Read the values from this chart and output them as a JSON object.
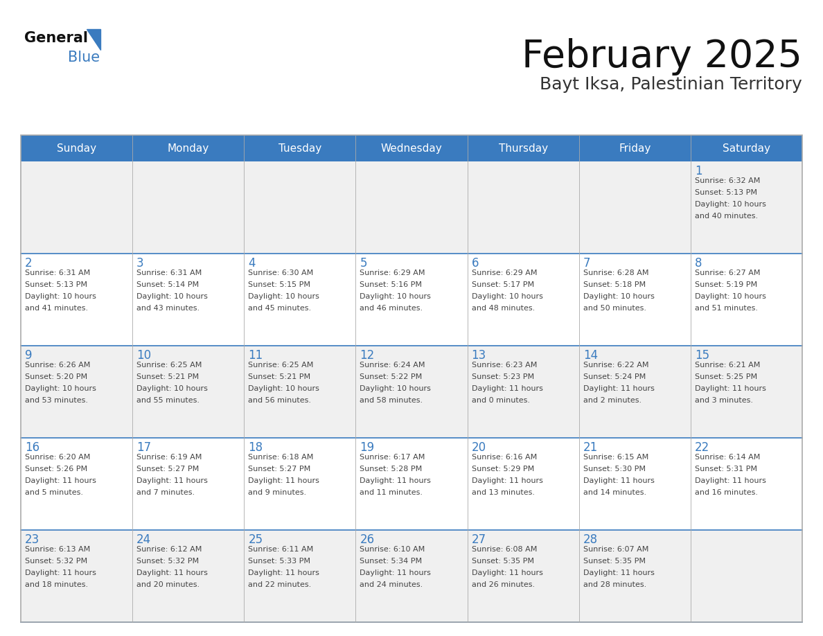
{
  "title": "February 2025",
  "subtitle": "Bayt Iksa, Palestinian Territory",
  "header_bg_color": "#3a7bbf",
  "header_text_color": "#ffffff",
  "cell_bg_gray": "#f0f0f0",
  "cell_bg_white": "#ffffff",
  "day_headers": [
    "Sunday",
    "Monday",
    "Tuesday",
    "Wednesday",
    "Thursday",
    "Friday",
    "Saturday"
  ],
  "title_color": "#111111",
  "subtitle_color": "#333333",
  "day_num_color": "#3a7bbf",
  "info_color": "#444444",
  "logo_general_color": "#111111",
  "logo_blue_color": "#3a7bbf",
  "separator_color": "#3a7bbf",
  "border_color": "#aaaaaa",
  "days": [
    {
      "day": 1,
      "col": 6,
      "row": 0,
      "sunrise": "6:32 AM",
      "sunset": "5:13 PM",
      "daylight_line1": "Daylight: 10 hours",
      "daylight_line2": "and 40 minutes."
    },
    {
      "day": 2,
      "col": 0,
      "row": 1,
      "sunrise": "6:31 AM",
      "sunset": "5:13 PM",
      "daylight_line1": "Daylight: 10 hours",
      "daylight_line2": "and 41 minutes."
    },
    {
      "day": 3,
      "col": 1,
      "row": 1,
      "sunrise": "6:31 AM",
      "sunset": "5:14 PM",
      "daylight_line1": "Daylight: 10 hours",
      "daylight_line2": "and 43 minutes."
    },
    {
      "day": 4,
      "col": 2,
      "row": 1,
      "sunrise": "6:30 AM",
      "sunset": "5:15 PM",
      "daylight_line1": "Daylight: 10 hours",
      "daylight_line2": "and 45 minutes."
    },
    {
      "day": 5,
      "col": 3,
      "row": 1,
      "sunrise": "6:29 AM",
      "sunset": "5:16 PM",
      "daylight_line1": "Daylight: 10 hours",
      "daylight_line2": "and 46 minutes."
    },
    {
      "day": 6,
      "col": 4,
      "row": 1,
      "sunrise": "6:29 AM",
      "sunset": "5:17 PM",
      "daylight_line1": "Daylight: 10 hours",
      "daylight_line2": "and 48 minutes."
    },
    {
      "day": 7,
      "col": 5,
      "row": 1,
      "sunrise": "6:28 AM",
      "sunset": "5:18 PM",
      "daylight_line1": "Daylight: 10 hours",
      "daylight_line2": "and 50 minutes."
    },
    {
      "day": 8,
      "col": 6,
      "row": 1,
      "sunrise": "6:27 AM",
      "sunset": "5:19 PM",
      "daylight_line1": "Daylight: 10 hours",
      "daylight_line2": "and 51 minutes."
    },
    {
      "day": 9,
      "col": 0,
      "row": 2,
      "sunrise": "6:26 AM",
      "sunset": "5:20 PM",
      "daylight_line1": "Daylight: 10 hours",
      "daylight_line2": "and 53 minutes."
    },
    {
      "day": 10,
      "col": 1,
      "row": 2,
      "sunrise": "6:25 AM",
      "sunset": "5:21 PM",
      "daylight_line1": "Daylight: 10 hours",
      "daylight_line2": "and 55 minutes."
    },
    {
      "day": 11,
      "col": 2,
      "row": 2,
      "sunrise": "6:25 AM",
      "sunset": "5:21 PM",
      "daylight_line1": "Daylight: 10 hours",
      "daylight_line2": "and 56 minutes."
    },
    {
      "day": 12,
      "col": 3,
      "row": 2,
      "sunrise": "6:24 AM",
      "sunset": "5:22 PM",
      "daylight_line1": "Daylight: 10 hours",
      "daylight_line2": "and 58 minutes."
    },
    {
      "day": 13,
      "col": 4,
      "row": 2,
      "sunrise": "6:23 AM",
      "sunset": "5:23 PM",
      "daylight_line1": "Daylight: 11 hours",
      "daylight_line2": "and 0 minutes."
    },
    {
      "day": 14,
      "col": 5,
      "row": 2,
      "sunrise": "6:22 AM",
      "sunset": "5:24 PM",
      "daylight_line1": "Daylight: 11 hours",
      "daylight_line2": "and 2 minutes."
    },
    {
      "day": 15,
      "col": 6,
      "row": 2,
      "sunrise": "6:21 AM",
      "sunset": "5:25 PM",
      "daylight_line1": "Daylight: 11 hours",
      "daylight_line2": "and 3 minutes."
    },
    {
      "day": 16,
      "col": 0,
      "row": 3,
      "sunrise": "6:20 AM",
      "sunset": "5:26 PM",
      "daylight_line1": "Daylight: 11 hours",
      "daylight_line2": "and 5 minutes."
    },
    {
      "day": 17,
      "col": 1,
      "row": 3,
      "sunrise": "6:19 AM",
      "sunset": "5:27 PM",
      "daylight_line1": "Daylight: 11 hours",
      "daylight_line2": "and 7 minutes."
    },
    {
      "day": 18,
      "col": 2,
      "row": 3,
      "sunrise": "6:18 AM",
      "sunset": "5:27 PM",
      "daylight_line1": "Daylight: 11 hours",
      "daylight_line2": "and 9 minutes."
    },
    {
      "day": 19,
      "col": 3,
      "row": 3,
      "sunrise": "6:17 AM",
      "sunset": "5:28 PM",
      "daylight_line1": "Daylight: 11 hours",
      "daylight_line2": "and 11 minutes."
    },
    {
      "day": 20,
      "col": 4,
      "row": 3,
      "sunrise": "6:16 AM",
      "sunset": "5:29 PM",
      "daylight_line1": "Daylight: 11 hours",
      "daylight_line2": "and 13 minutes."
    },
    {
      "day": 21,
      "col": 5,
      "row": 3,
      "sunrise": "6:15 AM",
      "sunset": "5:30 PM",
      "daylight_line1": "Daylight: 11 hours",
      "daylight_line2": "and 14 minutes."
    },
    {
      "day": 22,
      "col": 6,
      "row": 3,
      "sunrise": "6:14 AM",
      "sunset": "5:31 PM",
      "daylight_line1": "Daylight: 11 hours",
      "daylight_line2": "and 16 minutes."
    },
    {
      "day": 23,
      "col": 0,
      "row": 4,
      "sunrise": "6:13 AM",
      "sunset": "5:32 PM",
      "daylight_line1": "Daylight: 11 hours",
      "daylight_line2": "and 18 minutes."
    },
    {
      "day": 24,
      "col": 1,
      "row": 4,
      "sunrise": "6:12 AM",
      "sunset": "5:32 PM",
      "daylight_line1": "Daylight: 11 hours",
      "daylight_line2": "and 20 minutes."
    },
    {
      "day": 25,
      "col": 2,
      "row": 4,
      "sunrise": "6:11 AM",
      "sunset": "5:33 PM",
      "daylight_line1": "Daylight: 11 hours",
      "daylight_line2": "and 22 minutes."
    },
    {
      "day": 26,
      "col": 3,
      "row": 4,
      "sunrise": "6:10 AM",
      "sunset": "5:34 PM",
      "daylight_line1": "Daylight: 11 hours",
      "daylight_line2": "and 24 minutes."
    },
    {
      "day": 27,
      "col": 4,
      "row": 4,
      "sunrise": "6:08 AM",
      "sunset": "5:35 PM",
      "daylight_line1": "Daylight: 11 hours",
      "daylight_line2": "and 26 minutes."
    },
    {
      "day": 28,
      "col": 5,
      "row": 4,
      "sunrise": "6:07 AM",
      "sunset": "5:35 PM",
      "daylight_line1": "Daylight: 11 hours",
      "daylight_line2": "and 28 minutes."
    }
  ]
}
